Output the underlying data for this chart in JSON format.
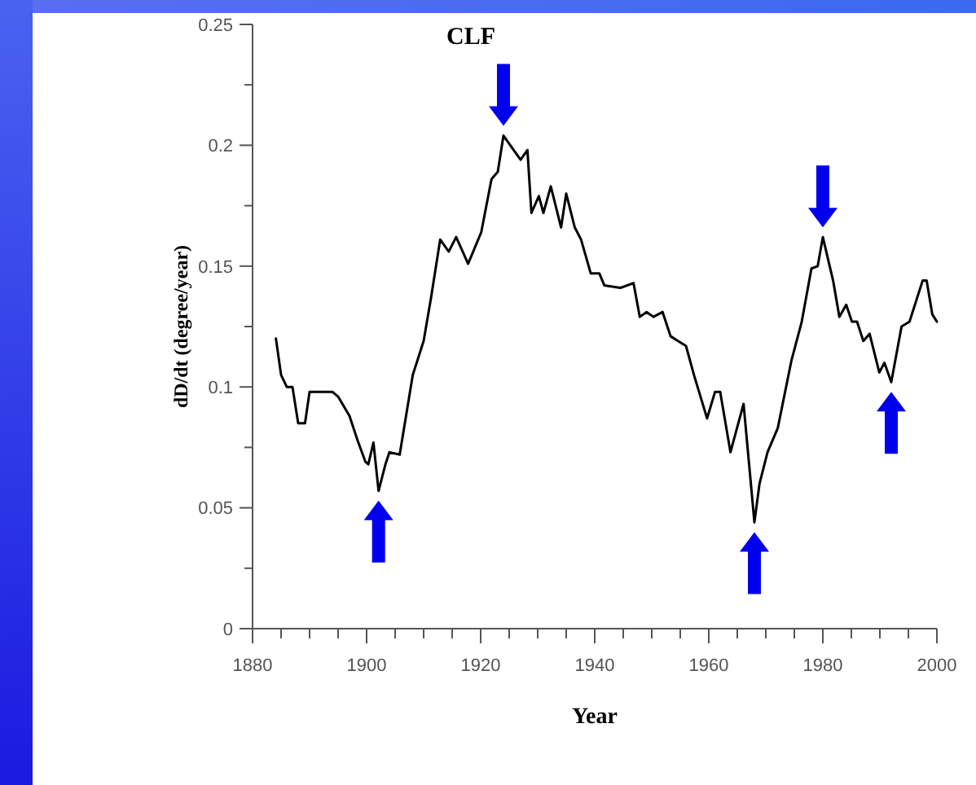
{
  "chart_data": {
    "type": "line",
    "xlabel": "Year",
    "ylabel": "dD/dt (degree/year)",
    "annotations": [
      "CLF"
    ],
    "x": [
      1884.1,
      1885,
      1886,
      1887,
      1888,
      1889.2,
      1890,
      1891.5,
      1894,
      1895,
      1897,
      1898.4,
      1899.8,
      1900.3,
      1901.2,
      1902.1,
      1903.3,
      1904,
      1905.8,
      1908.1,
      1910,
      1911.3,
      1912.9,
      1914.4,
      1915.7,
      1917.8,
      1920.1,
      1921.9,
      1923,
      1924,
      1926.1,
      1927,
      1928.2,
      1928.9,
      1930.2,
      1931,
      1932.3,
      1934.1,
      1935,
      1936.5,
      1937.6,
      1939.3,
      1940.8,
      1941.7,
      1944.5,
      1946.8,
      1947.9,
      1949.1,
      1950.3,
      1951.9,
      1953.3,
      1954.6,
      1956,
      1957.4,
      1959.7,
      1961.1,
      1962,
      1963.8,
      1966.1,
      1968,
      1968.9,
      1970.3,
      1972.1,
      1974.5,
      1976.3,
      1978,
      1979.1,
      1980,
      1981.8,
      1982.9,
      1984.1,
      1985.1,
      1986,
      1987.1,
      1988.2,
      1989.9,
      1990.8,
      1992,
      1993.8,
      1995.2,
      1997.5,
      1998.2,
      1999.2,
      2000
    ],
    "series": [
      {
        "color": "#000000",
        "values": [
          0.12,
          0.105,
          0.1,
          0.1,
          0.085,
          0.085,
          0.098,
          0.098,
          0.098,
          0.096,
          0.088,
          0.078,
          0.069,
          0.068,
          0.077,
          0.057,
          0.068,
          0.073,
          0.072,
          0.105,
          0.119,
          0.137,
          0.161,
          0.156,
          0.162,
          0.151,
          0.164,
          0.186,
          0.189,
          0.204,
          0.197,
          0.194,
          0.198,
          0.172,
          0.179,
          0.172,
          0.183,
          0.166,
          0.18,
          0.166,
          0.161,
          0.147,
          0.147,
          0.142,
          0.141,
          0.143,
          0.129,
          0.131,
          0.129,
          0.131,
          0.121,
          0.119,
          0.117,
          0.105,
          0.087,
          0.098,
          0.098,
          0.073,
          0.093,
          0.044,
          0.06,
          0.073,
          0.083,
          0.111,
          0.127,
          0.149,
          0.15,
          0.162,
          0.144,
          0.129,
          0.134,
          0.127,
          0.127,
          0.119,
          0.122,
          0.106,
          0.11,
          0.102,
          0.125,
          0.127,
          0.144,
          0.144,
          0.13,
          0.127
        ]
      }
    ],
    "xlim": [
      1880,
      2000
    ],
    "xticks": [
      1880,
      1900,
      1920,
      1940,
      1960,
      1980,
      2000
    ],
    "ylim": [
      0,
      0.25
    ],
    "yticks": [
      0,
      0.05,
      0.1,
      0.15,
      0.2,
      0.25
    ],
    "grid": false,
    "marker": "none",
    "line_style": "solid"
  }
}
